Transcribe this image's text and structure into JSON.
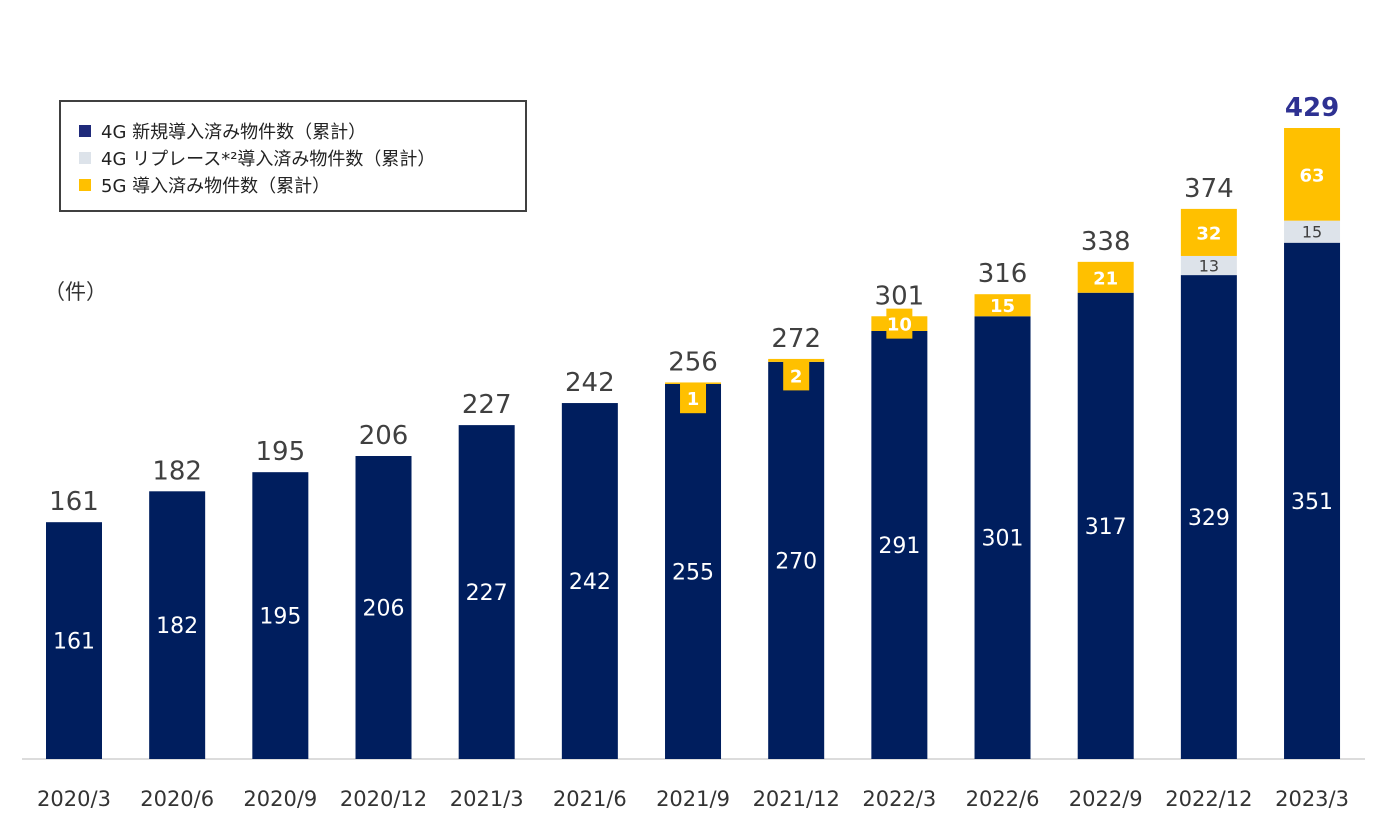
{
  "unit_label": "（件）",
  "legend": [
    {
      "label": "4G 新規導入済み物件数（累計）",
      "color": "#1f2a7a"
    },
    {
      "label": "4G リプレース*²導入済み物件数（累計）",
      "color": "#dde3ea"
    },
    {
      "label": "5G 導入済み物件数（累計）",
      "color": "#ffc000"
    }
  ],
  "colors": {
    "4g_new": "#001e5e",
    "4g_replace": "#dde3ea",
    "5g": "#ffc000",
    "total_text": "#404040",
    "total_highlight": "#2e3192",
    "axis": "#d0d0d0"
  },
  "chart_data": {
    "type": "bar",
    "stacked": true,
    "categories": [
      "2020/3",
      "2020/6",
      "2020/9",
      "2020/12",
      "2021/3",
      "2021/6",
      "2021/9",
      "2021/12",
      "2022/3",
      "2022/6",
      "2022/9",
      "2022/12",
      "2023/3"
    ],
    "series": [
      {
        "name": "4G 新規導入済み物件数（累計）",
        "values": [
          161,
          182,
          195,
          206,
          227,
          242,
          255,
          270,
          291,
          301,
          317,
          329,
          351
        ]
      },
      {
        "name": "4G リプレース*²導入済み物件数（累計）",
        "values": [
          0,
          0,
          0,
          0,
          0,
          0,
          0,
          0,
          0,
          0,
          0,
          13,
          15
        ]
      },
      {
        "name": "5G 導入済み物件数（累計）",
        "values": [
          0,
          0,
          0,
          0,
          0,
          0,
          1,
          2,
          10,
          15,
          21,
          32,
          63
        ]
      }
    ],
    "totals": [
      161,
      182,
      195,
      206,
      227,
      242,
      256,
      272,
      301,
      316,
      338,
      374,
      429
    ],
    "ylim": [
      0,
      429
    ],
    "ylabel": "（件）",
    "xlabel": "",
    "grid": false,
    "legend_position": "top-left"
  }
}
